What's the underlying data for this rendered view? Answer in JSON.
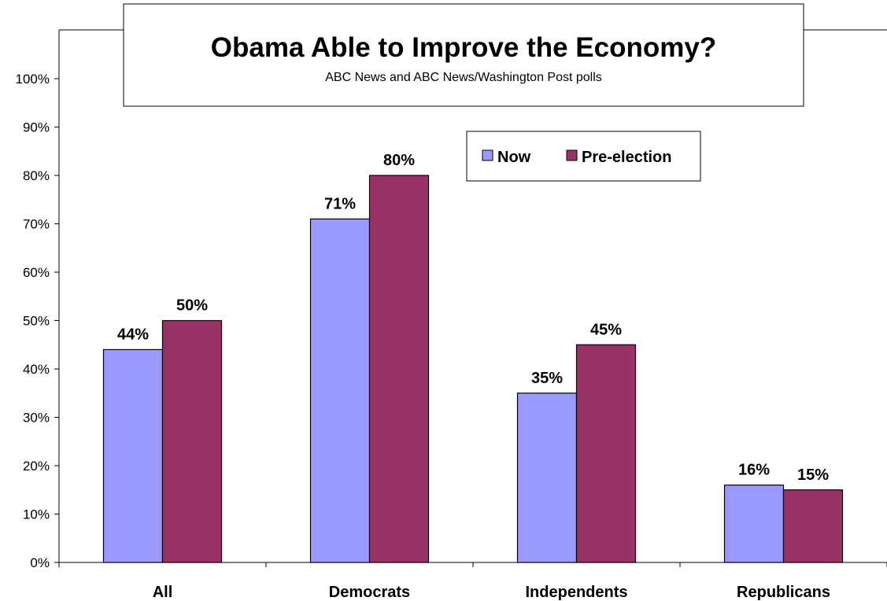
{
  "chart_data": {
    "type": "bar",
    "title": "Obama Able to Improve the Economy?",
    "subtitle": "ABC News and ABC News/Washington Post polls",
    "categories": [
      "All",
      "Democrats",
      "Independents",
      "Republicans"
    ],
    "series": [
      {
        "name": "Now",
        "color": "#9999ff",
        "values": [
          44,
          71,
          35,
          16
        ]
      },
      {
        "name": "Pre-election",
        "color": "#993366",
        "values": [
          50,
          80,
          45,
          15
        ]
      }
    ],
    "value_suffix": "%",
    "ylim": [
      0,
      100
    ],
    "yticks": [
      0,
      10,
      20,
      30,
      40,
      50,
      60,
      70,
      80,
      90,
      100
    ],
    "ytick_labels": [
      "0%",
      "10%",
      "20%",
      "30%",
      "40%",
      "50%",
      "60%",
      "70%",
      "80%",
      "90%",
      "100%"
    ],
    "xlabel": "",
    "ylabel": "",
    "grid": false,
    "legend_position": "inside, upper-right"
  }
}
